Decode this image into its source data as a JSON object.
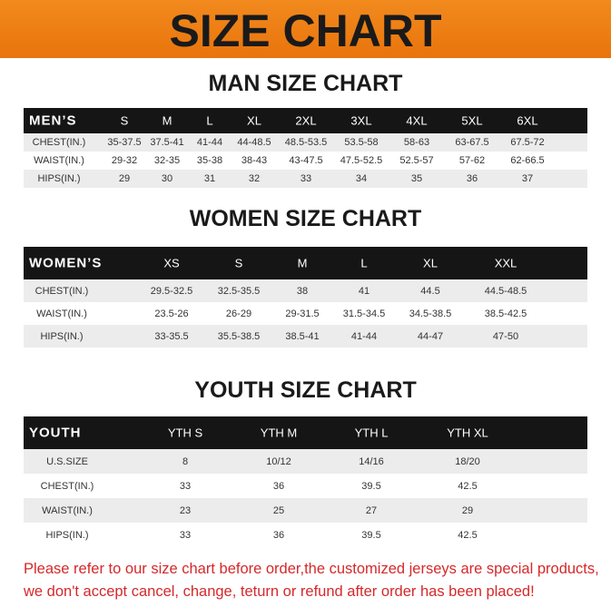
{
  "header": {
    "title": "SIZE CHART"
  },
  "sections": [
    {
      "title": "MAN SIZE CHART",
      "table": {
        "columns": [
          "MEN’S",
          "S",
          "M",
          "L",
          "XL",
          "2XL",
          "3XL",
          "4XL",
          "5XL",
          "6XL"
        ],
        "rows": [
          [
            "CHEST(IN.)",
            "35-37.5",
            "37.5-41",
            "41-44",
            "44-48.5",
            "48.5-53.5",
            "53.5-58",
            "58-63",
            "63-67.5",
            "67.5-72"
          ],
          [
            "WAIST(IN.)",
            "29-32",
            "32-35",
            "35-38",
            "38-43",
            "43-47.5",
            "47.5-52.5",
            "52.5-57",
            "57-62",
            "62-66.5"
          ],
          [
            "HIPS(IN.)",
            "29",
            "30",
            "31",
            "32",
            "33",
            "34",
            "35",
            "36",
            "37"
          ]
        ]
      }
    },
    {
      "title": "WOMEN SIZE CHART",
      "table": {
        "columns": [
          "WOMEN’S",
          "XS",
          "S",
          "M",
          "L",
          "XL",
          "XXL"
        ],
        "rows": [
          [
            "CHEST(IN.)",
            "29.5-32.5",
            "32.5-35.5",
            "38",
            "41",
            "44.5",
            "44.5-48.5"
          ],
          [
            "WAIST(IN.)",
            "23.5-26",
            "26-29",
            "29-31.5",
            "31.5-34.5",
            "34.5-38.5",
            "38.5-42.5"
          ],
          [
            "HIPS(IN.)",
            "33-35.5",
            "35.5-38.5",
            "38.5-41",
            "41-44",
            "44-47",
            "47-50"
          ]
        ]
      }
    },
    {
      "title": "YOUTH SIZE CHART",
      "table": {
        "columns": [
          "YOUTH",
          "YTH S",
          "YTH M",
          "YTH L",
          "YTH XL"
        ],
        "rows": [
          [
            "U.S.SIZE",
            "8",
            "10/12",
            "14/16",
            "18/20"
          ],
          [
            "CHEST(IN.)",
            "33",
            "36",
            "39.5",
            "42.5"
          ],
          [
            "WAIST(IN.)",
            "23",
            "25",
            "27",
            "29"
          ],
          [
            "HIPS(IN.)",
            "33",
            "36",
            "39.5",
            "42.5"
          ]
        ]
      }
    }
  ],
  "footer": {
    "lines": [
      "Please refer to our size chart before order,the customized jerseys are special products,",
      "we don't accept cancel, change, teturn or refund after order has been placed!"
    ]
  }
}
